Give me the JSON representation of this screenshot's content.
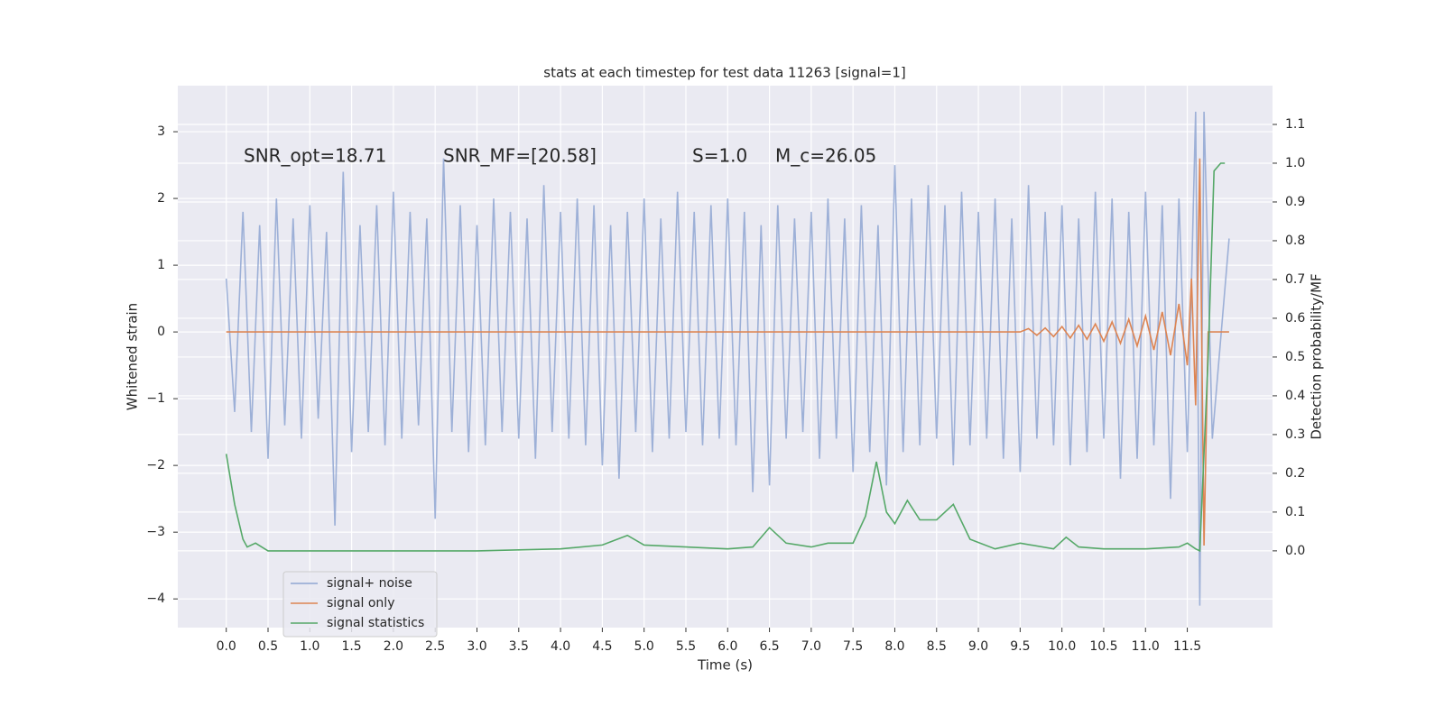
{
  "chart_data": {
    "type": "line",
    "title": "stats at each timestep for test data 11263 [signal=1]",
    "xlabel": "Time (s)",
    "ylabel": "Whitened strain",
    "y2label": "Detection probability/MF",
    "annotations": [
      "SNR_opt=18.71",
      "SNR_MF=[20.58]",
      "S=1.0",
      "M_c=26.05"
    ],
    "background": "#eaeaf2",
    "grid": true,
    "legend": "lower left",
    "xlim": [
      -0.58,
      12.52
    ],
    "ylim": [
      -4.43,
      3.69
    ],
    "y2lim": [
      -0.198,
      1.2
    ],
    "xticks": [
      {
        "value": 0,
        "label": "0.0"
      },
      {
        "value": 0.5,
        "label": "0.5"
      },
      {
        "value": 1,
        "label": "1.0"
      },
      {
        "value": 1.5,
        "label": "1.5"
      },
      {
        "value": 2,
        "label": "2.0"
      },
      {
        "value": 2.5,
        "label": "2.5"
      },
      {
        "value": 3,
        "label": "3.0"
      },
      {
        "value": 3.5,
        "label": "3.5"
      },
      {
        "value": 4,
        "label": "4.0"
      },
      {
        "value": 4.5,
        "label": "4.5"
      },
      {
        "value": 5,
        "label": "5.0"
      },
      {
        "value": 5.5,
        "label": "5.5"
      },
      {
        "value": 6,
        "label": "6.0"
      },
      {
        "value": 6.5,
        "label": "6.5"
      },
      {
        "value": 7,
        "label": "7.0"
      },
      {
        "value": 7.5,
        "label": "7.5"
      },
      {
        "value": 8,
        "label": "8.0"
      },
      {
        "value": 8.5,
        "label": "8.5"
      },
      {
        "value": 9,
        "label": "9.0"
      },
      {
        "value": 9.5,
        "label": "9.5"
      },
      {
        "value": 10,
        "label": "10.0"
      },
      {
        "value": 10.5,
        "label": "10.5"
      },
      {
        "value": 11,
        "label": "11.0"
      },
      {
        "value": 11.5,
        "label": "11.5"
      }
    ],
    "yticks": [
      {
        "value": -4,
        "label": "−4"
      },
      {
        "value": -3,
        "label": "−3"
      },
      {
        "value": -2,
        "label": "−2"
      },
      {
        "value": -1,
        "label": "−1"
      },
      0,
      1,
      2,
      3
    ],
    "y2ticks": [
      {
        "value": 0,
        "label": "0.0"
      },
      {
        "value": 0.1,
        "label": "0.1"
      },
      {
        "value": 0.2,
        "label": "0.2"
      },
      {
        "value": 0.3,
        "label": "0.3"
      },
      {
        "value": 0.4,
        "label": "0.4"
      },
      {
        "value": 0.5,
        "label": "0.5"
      },
      {
        "value": 0.6,
        "label": "0.6"
      },
      {
        "value": 0.7,
        "label": "0.7"
      },
      {
        "value": 0.8,
        "label": "0.8"
      },
      {
        "value": 0.9,
        "label": "0.9"
      },
      {
        "value": 1,
        "label": "1.0"
      },
      {
        "value": 1.1,
        "label": "1.1"
      }
    ],
    "series": [
      {
        "name": "signal+ noise",
        "color": "#8fa6d2",
        "x": [
          0,
          0.1,
          0.2,
          0.3,
          0.4,
          0.5,
          0.6,
          0.7,
          0.8,
          0.9,
          1,
          1.1,
          1.2,
          1.3,
          1.4,
          1.5,
          1.6,
          1.7,
          1.8,
          1.9,
          2,
          2.1,
          2.2,
          2.3,
          2.4,
          2.5,
          2.6,
          2.7,
          2.8,
          2.9,
          3,
          3.1,
          3.2,
          3.3,
          3.4,
          3.5,
          3.6,
          3.7,
          3.8,
          3.9,
          4,
          4.1,
          4.2,
          4.3,
          4.4,
          4.5,
          4.6,
          4.7,
          4.8,
          4.9,
          5,
          5.1,
          5.2,
          5.3,
          5.4,
          5.5,
          5.6,
          5.7,
          5.8,
          5.9,
          6,
          6.1,
          6.2,
          6.3,
          6.4,
          6.5,
          6.6,
          6.7,
          6.8,
          6.9,
          7,
          7.1,
          7.2,
          7.3,
          7.4,
          7.5,
          7.6,
          7.7,
          7.8,
          7.9,
          8,
          8.1,
          8.2,
          8.3,
          8.4,
          8.5,
          8.6,
          8.7,
          8.8,
          8.9,
          9,
          9.1,
          9.2,
          9.3,
          9.4,
          9.5,
          9.6,
          9.7,
          9.8,
          9.9,
          10,
          10.1,
          10.2,
          10.3,
          10.4,
          10.5,
          10.6,
          10.7,
          10.8,
          10.9,
          11,
          11.1,
          11.2,
          11.3,
          11.4,
          11.5,
          11.6,
          11.65,
          11.7,
          11.8,
          12
        ],
        "values": [
          0.8,
          -1.2,
          1.8,
          -1.5,
          1.6,
          -1.9,
          2.0,
          -1.4,
          1.7,
          -1.6,
          1.9,
          -1.3,
          1.5,
          -2.9,
          2.4,
          -1.8,
          1.6,
          -1.5,
          1.9,
          -1.7,
          2.1,
          -1.6,
          1.8,
          -1.4,
          1.7,
          -2.8,
          2.6,
          -1.5,
          1.9,
          -1.8,
          1.6,
          -1.7,
          2.0,
          -1.5,
          1.8,
          -1.6,
          1.7,
          -1.9,
          2.2,
          -1.5,
          1.8,
          -1.6,
          2.0,
          -1.7,
          1.9,
          -2.0,
          1.6,
          -2.2,
          1.8,
          -1.5,
          2.0,
          -1.8,
          1.7,
          -1.6,
          2.1,
          -1.5,
          1.8,
          -1.7,
          1.9,
          -1.6,
          2.0,
          -1.7,
          1.8,
          -2.4,
          1.6,
          -2.3,
          1.9,
          -1.6,
          1.7,
          -1.5,
          1.8,
          -1.9,
          2.0,
          -1.6,
          1.7,
          -2.1,
          1.9,
          -1.8,
          1.6,
          -2.3,
          2.5,
          -1.8,
          2.0,
          -1.7,
          2.2,
          -1.6,
          1.9,
          -2.0,
          2.1,
          -1.7,
          1.8,
          -1.6,
          2.0,
          -1.9,
          1.7,
          -2.1,
          2.2,
          -1.6,
          1.8,
          -1.7,
          1.9,
          -2.0,
          1.7,
          -1.8,
          2.1,
          -1.6,
          2.0,
          -2.2,
          1.8,
          -1.9,
          2.1,
          -1.7,
          1.9,
          -2.5,
          2.0,
          -1.8,
          3.3,
          -4.1,
          3.3,
          -1.6,
          1.4
        ]
      },
      {
        "name": "signal only",
        "color": "#dd8452",
        "x": [
          0,
          9.5,
          9.6,
          9.7,
          9.8,
          9.9,
          10,
          10.1,
          10.2,
          10.3,
          10.4,
          10.5,
          10.6,
          10.7,
          10.8,
          10.9,
          11,
          11.1,
          11.2,
          11.3,
          11.4,
          11.5,
          11.55,
          11.6,
          11.65,
          11.7,
          11.75,
          12
        ],
        "values": [
          0,
          0,
          0.05,
          -0.05,
          0.06,
          -0.07,
          0.08,
          -0.09,
          0.1,
          -0.11,
          0.12,
          -0.14,
          0.15,
          -0.17,
          0.19,
          -0.21,
          0.24,
          -0.27,
          0.3,
          -0.35,
          0.42,
          -0.5,
          0.8,
          -1.1,
          2.6,
          -3.2,
          0,
          0
        ]
      },
      {
        "name": "signal statistics",
        "color": "#55a868",
        "axis": "y2",
        "x": [
          0,
          0.1,
          0.2,
          0.25,
          0.35,
          0.5,
          1,
          2,
          3,
          4,
          4.5,
          4.8,
          5,
          5.5,
          6,
          6.3,
          6.5,
          6.7,
          7,
          7.2,
          7.5,
          7.65,
          7.78,
          7.9,
          8,
          8.15,
          8.3,
          8.5,
          8.7,
          8.9,
          9.2,
          9.5,
          9.9,
          10.05,
          10.2,
          10.5,
          11,
          11.4,
          11.5,
          11.6,
          11.65,
          11.75,
          11.82,
          11.9,
          11.95
        ],
        "values": [
          0.25,
          0.12,
          0.03,
          0.01,
          0.02,
          0.0,
          0.0,
          0.0,
          0.0,
          0.005,
          0.015,
          0.04,
          0.015,
          0.01,
          0.005,
          0.01,
          0.06,
          0.02,
          0.01,
          0.02,
          0.02,
          0.09,
          0.23,
          0.1,
          0.07,
          0.13,
          0.08,
          0.08,
          0.12,
          0.03,
          0.005,
          0.02,
          0.005,
          0.035,
          0.01,
          0.005,
          0.005,
          0.01,
          0.02,
          0.005,
          0.0,
          0.5,
          0.98,
          1.0,
          1.0
        ]
      }
    ]
  }
}
